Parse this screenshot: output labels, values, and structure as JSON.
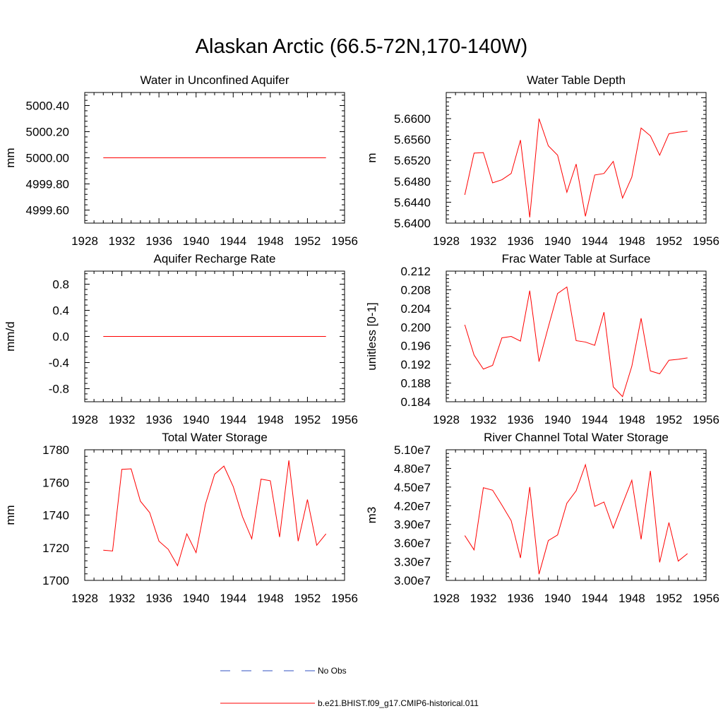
{
  "page": {
    "title": "Alaskan Arctic (66.5-72N,170-140W)"
  },
  "colors": {
    "model": "#ff0000",
    "obs": "#3050c0",
    "axis": "#000000"
  },
  "legend": {
    "items": [
      {
        "label": "No Obs",
        "style": "dashed",
        "color": "#3050c0"
      },
      {
        "label": "b.e21.BHIST.f09_g17.CMIP6-historical.011",
        "style": "solid",
        "color": "#ff0000"
      }
    ]
  },
  "chart_data": [
    {
      "type": "line",
      "title": "Water in Unconfined Aquifer",
      "ylabel": "mm",
      "xlim": [
        1928,
        1956
      ],
      "ylim": [
        4999.5,
        5000.5
      ],
      "xticks": [
        1928,
        1932,
        1936,
        1940,
        1944,
        1948,
        1952,
        1956
      ],
      "xtick_labels": [
        "1928",
        "1932",
        "1936",
        "1940",
        "1944",
        "1948",
        "1952",
        "1956"
      ],
      "yticks": [
        4999.6,
        4999.8,
        5000.0,
        5000.2,
        5000.4
      ],
      "ytick_labels": [
        "4999.60",
        "4999.80",
        "5000.00",
        "5000.20",
        "5000.40"
      ],
      "x": [
        1930,
        1931,
        1932,
        1933,
        1934,
        1935,
        1936,
        1937,
        1938,
        1939,
        1940,
        1941,
        1942,
        1943,
        1944,
        1945,
        1946,
        1947,
        1948,
        1949,
        1950,
        1951,
        1952,
        1953,
        1954
      ],
      "y": [
        5000,
        5000,
        5000,
        5000,
        5000,
        5000,
        5000,
        5000,
        5000,
        5000,
        5000,
        5000,
        5000,
        5000,
        5000,
        5000,
        5000,
        5000,
        5000,
        5000,
        5000,
        5000,
        5000,
        5000,
        5000
      ]
    },
    {
      "type": "line",
      "title": "Water Table Depth",
      "ylabel": "m",
      "xlim": [
        1928,
        1956
      ],
      "ylim": [
        5.64,
        5.665
      ],
      "xticks": [
        1928,
        1932,
        1936,
        1940,
        1944,
        1948,
        1952,
        1956
      ],
      "xtick_labels": [
        "1928",
        "1932",
        "1936",
        "1940",
        "1944",
        "1948",
        "1952",
        "1956"
      ],
      "yticks": [
        5.64,
        5.644,
        5.648,
        5.652,
        5.656,
        5.66
      ],
      "ytick_labels": [
        "5.6400",
        "5.6440",
        "5.6480",
        "5.6520",
        "5.6560",
        "5.6600"
      ],
      "x": [
        1930,
        1931,
        1932,
        1933,
        1934,
        1935,
        1936,
        1937,
        1938,
        1939,
        1940,
        1941,
        1942,
        1943,
        1944,
        1945,
        1946,
        1947,
        1948,
        1949,
        1950,
        1951,
        1952,
        1953,
        1954
      ],
      "y": [
        5.6454,
        5.6534,
        5.6535,
        5.6477,
        5.6483,
        5.6495,
        5.6559,
        5.6411,
        5.66,
        5.6548,
        5.653,
        5.6459,
        5.6513,
        5.6413,
        5.6492,
        5.6495,
        5.6518,
        5.6448,
        5.6488,
        5.6582,
        5.6567,
        5.653,
        5.6571,
        5.6574,
        5.6576
      ]
    },
    {
      "type": "line",
      "title": "Aquifer Recharge Rate",
      "ylabel": "mm/d",
      "xlim": [
        1928,
        1956
      ],
      "ylim": [
        -1.0,
        1.0
      ],
      "xticks": [
        1928,
        1932,
        1936,
        1940,
        1944,
        1948,
        1952,
        1956
      ],
      "xtick_labels": [
        "1928",
        "1932",
        "1936",
        "1940",
        "1944",
        "1948",
        "1952",
        "1956"
      ],
      "yticks": [
        -0.8,
        -0.4,
        0.0,
        0.4,
        0.8
      ],
      "ytick_labels": [
        "-0.8",
        "-0.4",
        "0.0",
        "0.4",
        "0.8"
      ],
      "x": [
        1930,
        1931,
        1932,
        1933,
        1934,
        1935,
        1936,
        1937,
        1938,
        1939,
        1940,
        1941,
        1942,
        1943,
        1944,
        1945,
        1946,
        1947,
        1948,
        1949,
        1950,
        1951,
        1952,
        1953,
        1954
      ],
      "y": [
        0,
        0,
        0,
        0,
        0,
        0,
        0,
        0,
        0,
        0,
        0,
        0,
        0,
        0,
        0,
        0,
        0,
        0,
        0,
        0,
        0,
        0,
        0,
        0,
        0
      ]
    },
    {
      "type": "line",
      "title": "Frac Water Table at Surface",
      "ylabel": "unitless [0-1]",
      "xlim": [
        1928,
        1956
      ],
      "ylim": [
        0.184,
        0.212
      ],
      "xticks": [
        1928,
        1932,
        1936,
        1940,
        1944,
        1948,
        1952,
        1956
      ],
      "xtick_labels": [
        "1928",
        "1932",
        "1936",
        "1940",
        "1944",
        "1948",
        "1952",
        "1956"
      ],
      "yticks": [
        0.184,
        0.188,
        0.192,
        0.196,
        0.2,
        0.204,
        0.208,
        0.212
      ],
      "ytick_labels": [
        "0.184",
        "0.188",
        "0.192",
        "0.196",
        "0.200",
        "0.204",
        "0.208",
        "0.212"
      ],
      "x": [
        1930,
        1931,
        1932,
        1933,
        1934,
        1935,
        1936,
        1937,
        1938,
        1939,
        1940,
        1941,
        1942,
        1943,
        1944,
        1945,
        1946,
        1947,
        1948,
        1949,
        1950,
        1951,
        1952,
        1953,
        1954
      ],
      "y": [
        0.2005,
        0.194,
        0.191,
        0.1918,
        0.1977,
        0.198,
        0.197,
        0.2078,
        0.1926,
        0.2,
        0.2072,
        0.2086,
        0.1971,
        0.1968,
        0.1961,
        0.2032,
        0.1872,
        0.1851,
        0.1916,
        0.2019,
        0.1906,
        0.19,
        0.1929,
        0.1931,
        0.1934
      ]
    },
    {
      "type": "line",
      "title": "Total Water Storage",
      "ylabel": "mm",
      "xlim": [
        1928,
        1956
      ],
      "ylim": [
        1700,
        1780
      ],
      "xticks": [
        1928,
        1932,
        1936,
        1940,
        1944,
        1948,
        1952,
        1956
      ],
      "xtick_labels": [
        "1928",
        "1932",
        "1936",
        "1940",
        "1944",
        "1948",
        "1952",
        "1956"
      ],
      "yticks": [
        1700,
        1720,
        1740,
        1760,
        1780
      ],
      "ytick_labels": [
        "1700",
        "1720",
        "1740",
        "1760",
        "1780"
      ],
      "x": [
        1930,
        1931,
        1932,
        1933,
        1934,
        1935,
        1936,
        1937,
        1938,
        1939,
        1940,
        1941,
        1942,
        1943,
        1944,
        1945,
        1946,
        1947,
        1948,
        1949,
        1950,
        1951,
        1952,
        1953,
        1954
      ],
      "y": [
        1718.5,
        1718,
        1768,
        1768.3,
        1748.5,
        1741.5,
        1724,
        1719,
        1709,
        1728.5,
        1717,
        1746.5,
        1765,
        1770,
        1757.5,
        1739,
        1725.5,
        1762,
        1761,
        1726.5,
        1773.5,
        1724,
        1749.5,
        1721.5,
        1728.5
      ]
    },
    {
      "type": "line",
      "title": "River Channel Total Water Storage",
      "ylabel": "m3",
      "xlim": [
        1928,
        1956
      ],
      "ylim": [
        30000000,
        51000000
      ],
      "xticks": [
        1928,
        1932,
        1936,
        1940,
        1944,
        1948,
        1952,
        1956
      ],
      "xtick_labels": [
        "1928",
        "1932",
        "1936",
        "1940",
        "1944",
        "1948",
        "1952",
        "1956"
      ],
      "yticks": [
        30000000,
        33000000,
        36000000,
        39000000,
        42000000,
        45000000,
        48000000,
        51000000
      ],
      "ytick_labels": [
        "3.00e7",
        "3.30e7",
        "3.60e7",
        "3.90e7",
        "4.20e7",
        "4.50e7",
        "4.80e7",
        "5.10e7"
      ],
      "x": [
        1930,
        1931,
        1932,
        1933,
        1934,
        1935,
        1936,
        1937,
        1938,
        1939,
        1940,
        1941,
        1942,
        1943,
        1944,
        1945,
        1946,
        1947,
        1948,
        1949,
        1950,
        1951,
        1952,
        1953,
        1954
      ],
      "y": [
        37200000,
        34900000,
        44900000,
        44500000,
        42100000,
        39600000,
        33600000,
        45000000,
        31000000,
        36400000,
        37300000,
        42400000,
        44400000,
        48600000,
        41900000,
        42600000,
        38400000,
        42300000,
        46100000,
        36600000,
        47600000,
        32900000,
        39300000,
        33100000,
        34300000
      ]
    }
  ]
}
